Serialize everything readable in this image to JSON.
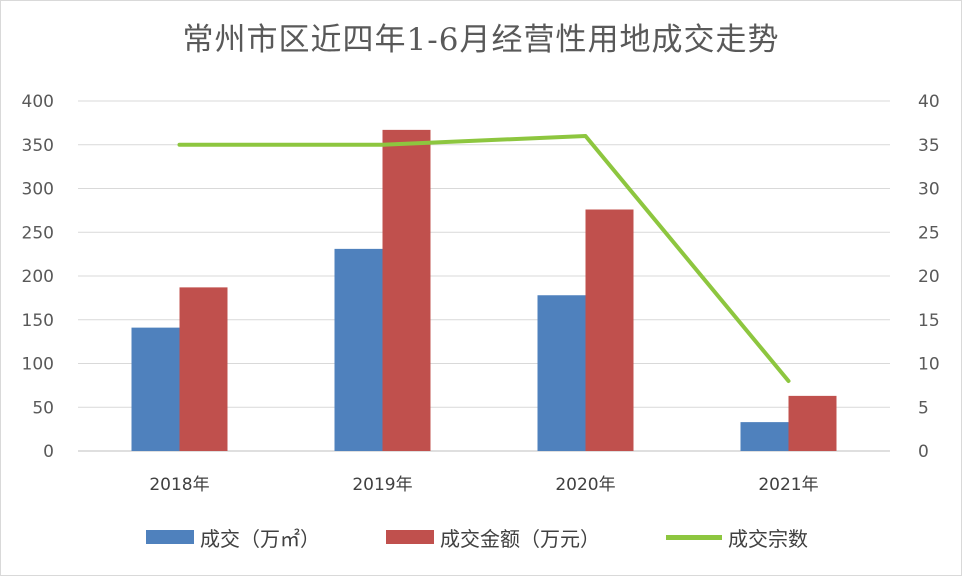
{
  "chart_data": {
    "type": "bar",
    "title": "常州市区近四年1-6月经营性用地成交走势",
    "categories": [
      "2018年",
      "2019年",
      "2020年",
      "2021年"
    ],
    "series": [
      {
        "name": "成交（万㎡）",
        "type": "bar",
        "axis": "left",
        "color": "#4f81bd",
        "values": [
          141,
          231,
          178,
          33
        ]
      },
      {
        "name": "成交金额（万元）",
        "type": "bar",
        "axis": "left",
        "color": "#c0504d",
        "values": [
          187,
          367,
          276,
          63
        ]
      },
      {
        "name": "成交宗数",
        "type": "line",
        "axis": "right",
        "color": "#8dc63f",
        "values": [
          35,
          35,
          36,
          8
        ]
      }
    ],
    "ylim": [
      0,
      400
    ],
    "y_ticks": [
      "0",
      "50",
      "100",
      "150",
      "200",
      "250",
      "300",
      "350",
      "400"
    ],
    "y2lim": [
      0,
      40
    ],
    "y2_ticks": [
      "0",
      "5",
      "10",
      "15",
      "20",
      "25",
      "30",
      "35",
      "40"
    ],
    "grid": true,
    "legend_position": "bottom"
  }
}
